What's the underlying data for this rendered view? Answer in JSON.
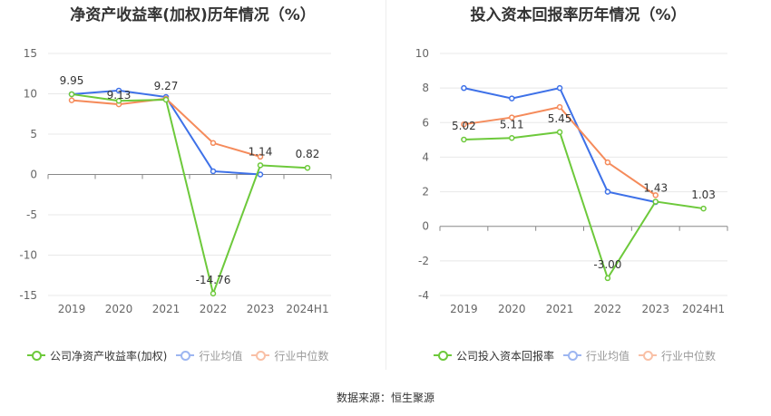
{
  "footer": {
    "source": "数据来源：恒生聚源"
  },
  "legend_left": [
    "公司净资产收益率(加权)",
    "行业均值",
    "行业中位数"
  ],
  "legend_right": [
    "公司投入资本回报率",
    "行业均值",
    "行业中位数"
  ],
  "chart_data": [
    {
      "type": "line",
      "title": "净资产收益率(加权)历年情况（%）",
      "categories": [
        "2019",
        "2020",
        "2021",
        "2022",
        "2023",
        "2024H1"
      ],
      "ylim": [
        -15,
        15
      ],
      "yticks": [
        15,
        10,
        5,
        0,
        -5,
        -10,
        -15
      ],
      "grid": true,
      "legend_position": "bottom",
      "series": [
        {
          "name": "公司净资产收益率(加权)",
          "color": "#6dc93b",
          "values": [
            9.95,
            9.13,
            9.27,
            -14.76,
            1.14,
            0.82
          ],
          "labels": [
            "9.95",
            "9.13",
            "9.27",
            "-14.76",
            "1.14",
            "0.82"
          ]
        },
        {
          "name": "行业均值",
          "color": "#3e71e8",
          "values": [
            9.95,
            10.4,
            9.6,
            0.4,
            0.0,
            null
          ]
        },
        {
          "name": "行业中位数",
          "color": "#f58b5b",
          "values": [
            9.2,
            8.7,
            9.4,
            3.9,
            2.2,
            null
          ]
        }
      ]
    },
    {
      "type": "line",
      "title": "投入资本回报率历年情况（%）",
      "categories": [
        "2019",
        "2020",
        "2021",
        "2022",
        "2023",
        "2024H1"
      ],
      "ylim": [
        -4,
        10
      ],
      "yticks": [
        10,
        8,
        6,
        4,
        2,
        0,
        -2,
        -4
      ],
      "grid": true,
      "legend_position": "bottom",
      "series": [
        {
          "name": "公司投入资本回报率",
          "color": "#6dc93b",
          "values": [
            5.02,
            5.11,
            5.45,
            -3.0,
            1.43,
            1.03
          ],
          "labels": [
            "5.02",
            "5.11",
            "5.45",
            "-3.00",
            "1.43",
            "1.03"
          ]
        },
        {
          "name": "行业均值",
          "color": "#3e71e8",
          "values": [
            8.0,
            7.4,
            8.0,
            2.0,
            1.4,
            null
          ]
        },
        {
          "name": "行业中位数",
          "color": "#f58b5b",
          "values": [
            5.9,
            6.3,
            6.9,
            3.7,
            1.8,
            null
          ]
        }
      ]
    }
  ]
}
